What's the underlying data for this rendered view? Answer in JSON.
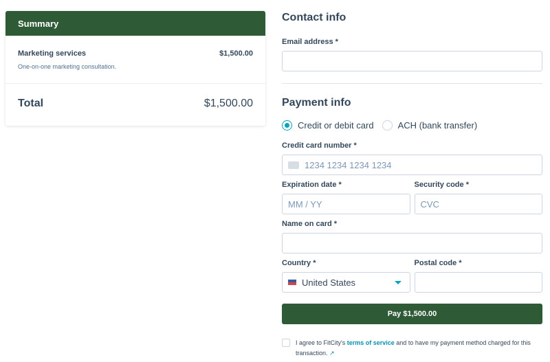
{
  "summary": {
    "title": "Summary",
    "item_name": "Marketing services",
    "item_price": "$1,500.00",
    "item_desc": "One-on-one marketing consultation.",
    "total_label": "Total",
    "total_value": "$1,500.00"
  },
  "contact": {
    "title": "Contact info",
    "email_label": "Email address *",
    "email_value": ""
  },
  "payment": {
    "title": "Payment info",
    "methods": [
      "Credit or debit card",
      "ACH (bank transfer)"
    ],
    "selected": "Credit or debit card",
    "card_label": "Credit card number *",
    "card_placeholder": "1234 1234 1234 1234",
    "exp_label": "Expiration date *",
    "exp_placeholder": "MM / YY",
    "cvc_label": "Security code *",
    "cvc_placeholder": "CVC",
    "name_label": "Name on card *",
    "country_label": "Country *",
    "country_value": "United States",
    "postal_label": "Postal code *",
    "pay_label": "Pay $1,500.00",
    "terms_pre": "I agree to FitCity's ",
    "terms_link": "terms of service",
    "terms_post": " and to have my payment method charged for this transaction."
  },
  "colors": {
    "brand": "#2e5a36",
    "accent": "#00a4bd"
  }
}
